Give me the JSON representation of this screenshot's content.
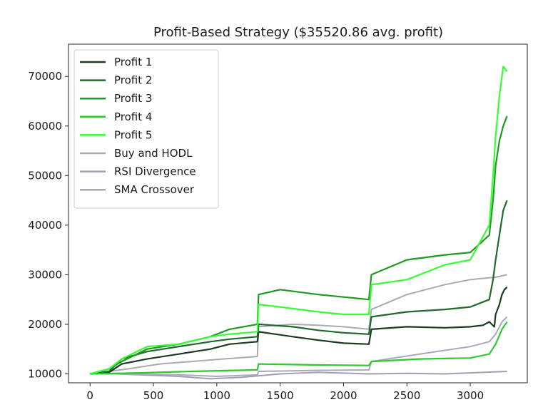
{
  "chart_data": {
    "type": "line",
    "title": "Profit-Based Strategy ($35520.86 avg. profit)",
    "xlabel": "",
    "ylabel": "",
    "xlim": [
      -170,
      3450
    ],
    "ylim": [
      8200,
      76500
    ],
    "x_ticks": [
      0,
      500,
      1000,
      1500,
      2000,
      2500,
      3000
    ],
    "y_ticks": [
      10000,
      20000,
      30000,
      40000,
      50000,
      60000,
      70000
    ],
    "x_tick_labels": [
      "0",
      "500",
      "1000",
      "1500",
      "2000",
      "2500",
      "3000"
    ],
    "y_tick_labels": [
      "10000",
      "20000",
      "30000",
      "40000",
      "50000",
      "60000",
      "70000"
    ],
    "grid": false,
    "legend_position": "upper-left",
    "series": [
      {
        "name": "Profit 1",
        "color": "#1e3a22",
        "points": [
          [
            0,
            10000
          ],
          [
            150,
            10300
          ],
          [
            250,
            12000
          ],
          [
            450,
            13000
          ],
          [
            700,
            14000
          ],
          [
            950,
            15000
          ],
          [
            1100,
            16000
          ],
          [
            1320,
            16500
          ],
          [
            1330,
            18500
          ],
          [
            1600,
            17500
          ],
          [
            1800,
            16800
          ],
          [
            2000,
            16200
          ],
          [
            2200,
            16000
          ],
          [
            2220,
            19000
          ],
          [
            2500,
            19500
          ],
          [
            2800,
            19300
          ],
          [
            3000,
            19500
          ],
          [
            3100,
            19800
          ],
          [
            3150,
            20500
          ],
          [
            3190,
            19500
          ],
          [
            3200,
            22000
          ],
          [
            3230,
            24000
          ],
          [
            3250,
            26000
          ],
          [
            3270,
            27000
          ],
          [
            3290,
            27500
          ]
        ]
      },
      {
        "name": "Profit 2",
        "color": "#1f6a2a",
        "points": [
          [
            0,
            10000
          ],
          [
            150,
            10500
          ],
          [
            250,
            13000
          ],
          [
            450,
            14500
          ],
          [
            700,
            15500
          ],
          [
            950,
            16500
          ],
          [
            1100,
            17000
          ],
          [
            1320,
            17500
          ],
          [
            1330,
            20000
          ],
          [
            1600,
            19500
          ],
          [
            1800,
            18800
          ],
          [
            2000,
            18300
          ],
          [
            2200,
            18000
          ],
          [
            2220,
            21500
          ],
          [
            2500,
            22500
          ],
          [
            2800,
            23000
          ],
          [
            3000,
            23500
          ],
          [
            3150,
            25000
          ],
          [
            3180,
            29000
          ],
          [
            3200,
            33000
          ],
          [
            3230,
            38000
          ],
          [
            3260,
            43000
          ],
          [
            3290,
            45000
          ]
        ]
      },
      {
        "name": "Profit 3",
        "color": "#1f9a1f",
        "points": [
          [
            0,
            10000
          ],
          [
            150,
            11000
          ],
          [
            250,
            12500
          ],
          [
            450,
            15000
          ],
          [
            700,
            16000
          ],
          [
            950,
            17500
          ],
          [
            1100,
            19000
          ],
          [
            1320,
            20000
          ],
          [
            1330,
            26000
          ],
          [
            1500,
            27000
          ],
          [
            1800,
            26000
          ],
          [
            2000,
            25500
          ],
          [
            2200,
            25000
          ],
          [
            2220,
            30000
          ],
          [
            2500,
            33000
          ],
          [
            2800,
            34000
          ],
          [
            3000,
            34500
          ],
          [
            3150,
            38000
          ],
          [
            3180,
            45000
          ],
          [
            3200,
            52000
          ],
          [
            3230,
            57000
          ],
          [
            3260,
            60000
          ],
          [
            3290,
            62000
          ]
        ]
      },
      {
        "name": "Profit 4",
        "color": "#2fc92f",
        "points": [
          [
            0,
            10000
          ],
          [
            400,
            10200
          ],
          [
            800,
            10500
          ],
          [
            1320,
            10800
          ],
          [
            1330,
            12000
          ],
          [
            1800,
            11800
          ],
          [
            2200,
            11700
          ],
          [
            2220,
            12500
          ],
          [
            2600,
            13000
          ],
          [
            3000,
            13200
          ],
          [
            3150,
            14000
          ],
          [
            3200,
            16000
          ],
          [
            3250,
            19000
          ],
          [
            3290,
            20500
          ]
        ]
      },
      {
        "name": "Profit 5",
        "color": "#33ff33",
        "points": [
          [
            0,
            10000
          ],
          [
            150,
            11000
          ],
          [
            250,
            13000
          ],
          [
            450,
            15500
          ],
          [
            700,
            16000
          ],
          [
            950,
            17500
          ],
          [
            1100,
            18000
          ],
          [
            1320,
            18500
          ],
          [
            1330,
            24000
          ],
          [
            1500,
            23500
          ],
          [
            1800,
            22500
          ],
          [
            2000,
            22000
          ],
          [
            2200,
            22000
          ],
          [
            2220,
            28000
          ],
          [
            2500,
            29000
          ],
          [
            2800,
            32000
          ],
          [
            3000,
            33000
          ],
          [
            3150,
            40000
          ],
          [
            3180,
            50000
          ],
          [
            3200,
            58000
          ],
          [
            3230,
            66000
          ],
          [
            3260,
            72000
          ],
          [
            3290,
            71000
          ]
        ]
      },
      {
        "name": "Buy and HODL",
        "color": "#a8aab2",
        "points": [
          [
            0,
            10000
          ],
          [
            300,
            11000
          ],
          [
            550,
            12000
          ],
          [
            800,
            12500
          ],
          [
            1050,
            13000
          ],
          [
            1320,
            13500
          ],
          [
            1330,
            19500
          ],
          [
            1600,
            20000
          ],
          [
            1800,
            19800
          ],
          [
            2000,
            19500
          ],
          [
            2200,
            19000
          ],
          [
            2220,
            23000
          ],
          [
            2500,
            26000
          ],
          [
            2800,
            28000
          ],
          [
            3000,
            29000
          ],
          [
            3200,
            29500
          ],
          [
            3290,
            30000
          ]
        ]
      },
      {
        "name": "RSI Divergence",
        "color": "#9ea0b2",
        "points": [
          [
            0,
            10000
          ],
          [
            200,
            10000
          ],
          [
            400,
            9800
          ],
          [
            700,
            9500
          ],
          [
            950,
            9000
          ],
          [
            1200,
            9300
          ],
          [
            1500,
            10000
          ],
          [
            1800,
            10300
          ],
          [
            2200,
            10000
          ],
          [
            2500,
            10100
          ],
          [
            2800,
            10000
          ],
          [
            3000,
            10200
          ],
          [
            3290,
            10500
          ]
        ]
      },
      {
        "name": "SMA Crossover",
        "color": "#a9a8bd",
        "points": [
          [
            0,
            10000
          ],
          [
            300,
            10000
          ],
          [
            700,
            9800
          ],
          [
            1000,
            9500
          ],
          [
            1320,
            9800
          ],
          [
            1330,
            10500
          ],
          [
            1800,
            10700
          ],
          [
            2200,
            10800
          ],
          [
            2220,
            12500
          ],
          [
            2600,
            14000
          ],
          [
            3000,
            15500
          ],
          [
            3150,
            16500
          ],
          [
            3200,
            18000
          ],
          [
            3250,
            20500
          ],
          [
            3290,
            21500
          ]
        ]
      }
    ]
  }
}
